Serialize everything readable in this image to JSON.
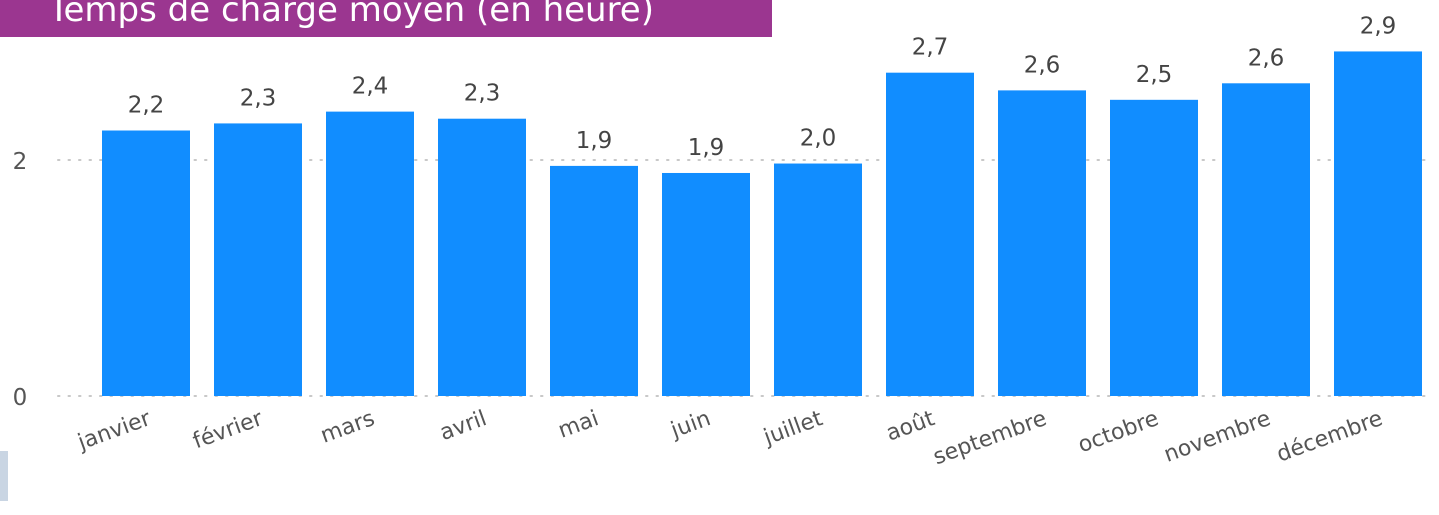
{
  "colors": {
    "title_background": "#9b3690",
    "title_text": "#ffffff",
    "bar": "#118dff",
    "label_text": "#444444",
    "tick_text": "#555555",
    "grid": "#c8c8c8"
  },
  "title": "Temps de charge moyen (en heure)",
  "chart_data": {
    "type": "bar",
    "title": "Temps de charge moyen (en heure)",
    "xlabel": "",
    "ylabel": "",
    "categories": [
      "janvier",
      "février",
      "mars",
      "avril",
      "mai",
      "juin",
      "juillet",
      "août",
      "septembre",
      "octobre",
      "novembre",
      "décembre"
    ],
    "values": [
      2.25,
      2.31,
      2.41,
      2.35,
      1.95,
      1.89,
      1.97,
      2.74,
      2.59,
      2.51,
      2.65,
      2.92
    ],
    "data_labels": [
      "2,2",
      "2,3",
      "2,4",
      "2,3",
      "1,9",
      "1,9",
      "2,0",
      "2,7",
      "2,6",
      "2,5",
      "2,6",
      "2,9"
    ],
    "y_ticks": [
      0,
      2
    ],
    "y_tick_labels": [
      "0",
      "2"
    ],
    "ylim": [
      0,
      3
    ],
    "grid": true,
    "legend": "none"
  }
}
